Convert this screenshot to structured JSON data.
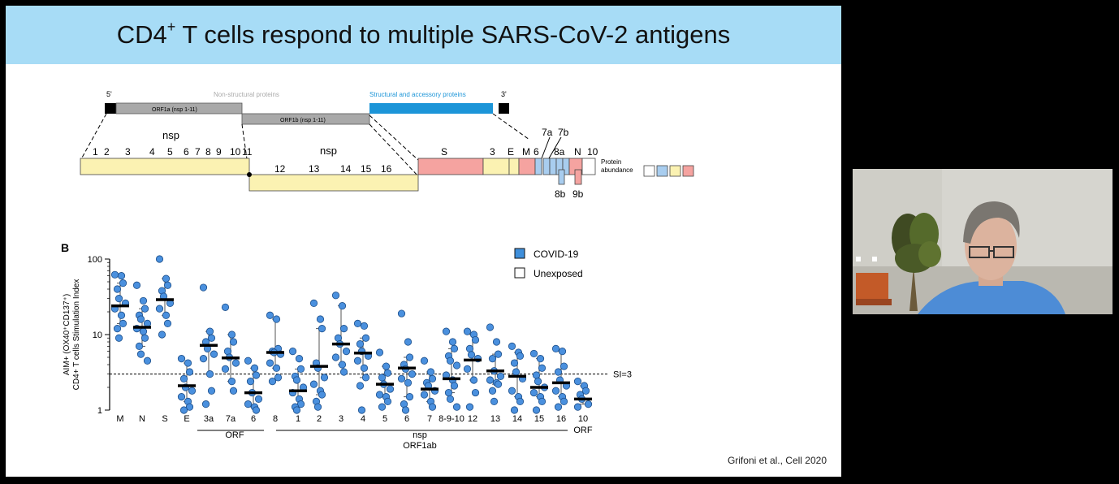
{
  "slide": {
    "title_prefix": "CD4",
    "title_sup": "+",
    "title_rest": " T cells respond to multiple SARS-CoV-2 antigens",
    "citation": "Grifoni et al., Cell 2020"
  },
  "genome": {
    "five_prime": "5'",
    "three_prime": "3'",
    "nonstructural_label": "Non-structural proteins",
    "structural_label": "Structural and accessory proteins",
    "orf1a": "ORF1a (nsp 1-11)",
    "orf1b": "ORF1b (nsp 1-11)",
    "nsp_left": "nsp",
    "nsp_right": "nsp",
    "nsp_top_numbers": [
      "1",
      "2",
      "3",
      "4",
      "5",
      "6",
      "7",
      "8",
      "9",
      "10",
      "11"
    ],
    "nsp_bottom_numbers": [
      "12",
      "13",
      "14",
      "15",
      "16"
    ],
    "structural_top": [
      "S",
      "3",
      "E",
      "M",
      "6",
      "7a",
      "7b",
      "8a",
      "N",
      "10"
    ],
    "structural_bottom": [
      "8b",
      "9b"
    ],
    "protein_abundance": [
      "Protein",
      "abundance"
    ],
    "colors": {
      "yellow": "#fbf2b2",
      "pink": "#f5a3a0",
      "blue": "#a8cdef",
      "gray": "#a9a9a9",
      "structural": "#1c95d8"
    }
  },
  "chart_data": {
    "type": "scatter",
    "panel_label": "B",
    "ylabel_line1": "AIM+ (OX40⁺CD137⁺)",
    "ylabel_line2": "CD4+ T cells Stimulation Index",
    "yscale": "log",
    "ylim": [
      1,
      100
    ],
    "yticks": [
      {
        "value": 1,
        "label": "1"
      },
      {
        "value": 10,
        "label": "10"
      },
      {
        "value": 100,
        "label": "100"
      }
    ],
    "threshold": {
      "value": 3,
      "label": "SI=3"
    },
    "legend": [
      {
        "name": "COVID-19",
        "color": "#3f8fdb"
      },
      {
        "name": "Unexposed",
        "color": "#ffffff"
      }
    ],
    "categories": [
      "M",
      "N",
      "S",
      "E",
      "3a",
      "7a",
      "6",
      "8",
      "1",
      "2",
      "3",
      "4",
      "5",
      "6",
      "7",
      "8-9-10",
      "12",
      "13",
      "14",
      "15",
      "16",
      "10"
    ],
    "medians": [
      24,
      12.5,
      29,
      2.1,
      7.2,
      4.9,
      1.7,
      5.8,
      1.8,
      3.8,
      7.5,
      5.7,
      2.2,
      3.6,
      1.9,
      2.6,
      4.6,
      3.3,
      2.8,
      2.0,
      2.3,
      1.4
    ],
    "points": [
      [
        62,
        60,
        48,
        40,
        30,
        26,
        22,
        18,
        14,
        12,
        9
      ],
      [
        45,
        28,
        22,
        18,
        16,
        14,
        12,
        11,
        9,
        7,
        5.5,
        4.5
      ],
      [
        100,
        55,
        45,
        38,
        32,
        26,
        22,
        18,
        14,
        10
      ],
      [
        4.8,
        4.2,
        3.2,
        2.6,
        2.0,
        1.8,
        1.5,
        1.3,
        1.1,
        1.0
      ],
      [
        42,
        11,
        9,
        8,
        6.5,
        5.5,
        4.8,
        3,
        1.8,
        1.2
      ],
      [
        23,
        10,
        8,
        6,
        5,
        4.2,
        3.5,
        2.4,
        1.8
      ],
      [
        4.5,
        3.6,
        2.9,
        2.4,
        1.7,
        1.4,
        1.2,
        1.1,
        1.0
      ],
      [
        18,
        16,
        6.5,
        6,
        5.8,
        5.5,
        4.2,
        3.6,
        2.7,
        2.4
      ],
      [
        6,
        4.8,
        3.5,
        2.8,
        2.5,
        2.0,
        1.7,
        1.4,
        1.2,
        1.1,
        1.0
      ],
      [
        26,
        16,
        12,
        4.2,
        3.6,
        2.7,
        2.2,
        1.8,
        1.6,
        1.3,
        1.1
      ],
      [
        33,
        24,
        12,
        9,
        7.5,
        6,
        5,
        4,
        3.2
      ],
      [
        14,
        13,
        9,
        7.5,
        6,
        5.2,
        4.5,
        3.6,
        2.7,
        2.1,
        1.0
      ],
      [
        5.8,
        3.8,
        3.1,
        2.7,
        2.2,
        1.9,
        1.6,
        1.5,
        1.3,
        1.1
      ],
      [
        19,
        8,
        5,
        4,
        3.5,
        3,
        2.6,
        2.3,
        1.5,
        1.2,
        1.0
      ],
      [
        4.5,
        3.2,
        2.6,
        2.3,
        2.1,
        1.8,
        1.6,
        1.3,
        1.1
      ],
      [
        11,
        8,
        6.5,
        5.2,
        4.5,
        3.9,
        2.9,
        2.5,
        2.1,
        1.7,
        1.4,
        1.1
      ],
      [
        11,
        10,
        8.5,
        6.5,
        5.4,
        4.8,
        3.5,
        2.5,
        1.7,
        1.1
      ],
      [
        12.5,
        8,
        5.5,
        4.8,
        3.3,
        2.8,
        2.5,
        2.3,
        2.2,
        1.8,
        1.3
      ],
      [
        7,
        5.8,
        5.2,
        4.2,
        3.2,
        2.6,
        1.8,
        1.5,
        1.3,
        1.0
      ],
      [
        5.6,
        4.8,
        3.6,
        2.9,
        2.4,
        2.0,
        1.7,
        1.5,
        1.3,
        1.0
      ],
      [
        6.5,
        6,
        3.8,
        3.2,
        2.5,
        2.1,
        1.8,
        1.5,
        1.3,
        1.1
      ],
      [
        2.4,
        2.1,
        1.8,
        1.6,
        1.4,
        1.2,
        1.1
      ]
    ],
    "group_labels": [
      {
        "text": "ORF",
        "from_index": 4,
        "to_index": 6
      },
      {
        "text": "nsp",
        "from_index": 7,
        "to_index": 20
      },
      {
        "text": "ORF1ab",
        "from_index": 7,
        "to_index": 20
      },
      {
        "text": "ORF",
        "from_index": 21,
        "to_index": 21
      }
    ]
  },
  "video": {
    "colors": {
      "shirt": "#4d8cd6",
      "wall": "#d8d7d1",
      "chair": "#c35a28"
    }
  }
}
